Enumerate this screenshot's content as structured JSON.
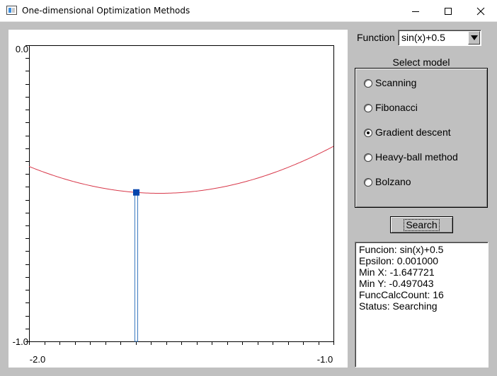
{
  "window": {
    "title": "One-dimensional Optimization Methods",
    "icon": "app-window-icon",
    "controls": [
      "minimize-icon",
      "maximize-icon",
      "close-icon"
    ]
  },
  "controls": {
    "function_label": "Function",
    "function_selected": "sin(x)+0.5",
    "model_group_title": "Select model",
    "models": [
      {
        "label": "Scanning",
        "checked": false
      },
      {
        "label": "Fibonacci",
        "checked": false
      },
      {
        "label": "Gradient descent",
        "checked": true
      },
      {
        "label": "Heavy-ball method",
        "checked": false
      },
      {
        "label": "Bolzano",
        "checked": false
      }
    ],
    "search_label": "Search"
  },
  "output": {
    "lines": [
      "Funcion: sin(x)+0.5",
      "Epsilon: 0.001000",
      "Min X: -1.647721",
      "Min Y: -0.497043",
      "FuncCalcCount: 16",
      "Status: Searching"
    ]
  },
  "chart_data": {
    "type": "line",
    "xlim": [
      -2.0,
      -1.0
    ],
    "ylim": [
      -1.0,
      0.0
    ],
    "x_tick_labels": [
      "-2.0",
      "-1.0"
    ],
    "y_tick_labels": [
      "0.0",
      "-1.0"
    ],
    "x_minor_ticks": 21,
    "y_minor_ticks": 24,
    "function": "sin(x)+0.5",
    "curve_color": "#d8384a",
    "marker": {
      "x": -1.647721,
      "y": -0.497043,
      "color": "#0645ad"
    },
    "bar_color": "#3a7abf"
  }
}
